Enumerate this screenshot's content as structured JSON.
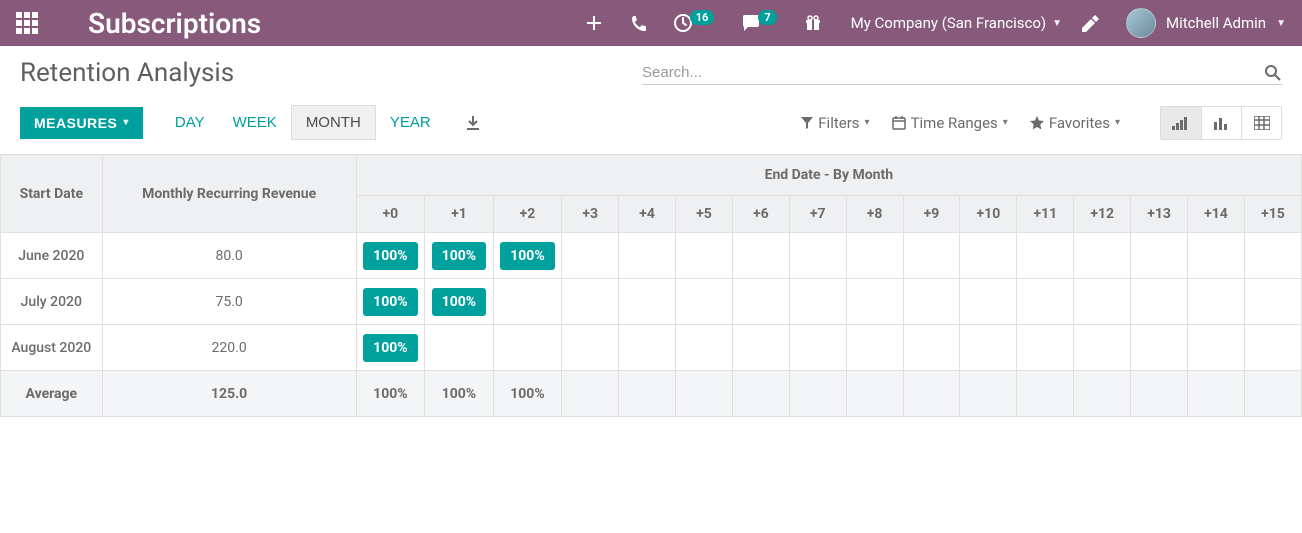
{
  "header": {
    "app_title": "Subscriptions",
    "clock_badge": "16",
    "chat_badge": "7",
    "company": "My Company (San Francisco)",
    "user_name": "Mitchell Admin"
  },
  "page": {
    "title": "Retention Analysis",
    "search_placeholder": "Search..."
  },
  "controls": {
    "measures_label": "MEASURES",
    "periods": [
      "DAY",
      "WEEK",
      "MONTH",
      "YEAR"
    ],
    "active_period": "MONTH",
    "filters_label": "Filters",
    "time_ranges_label": "Time Ranges",
    "favorites_label": "Favorites"
  },
  "table": {
    "col_start": "Start Date",
    "col_mrr": "Monthly Recurring Revenue",
    "col_group": "End Date - By Month",
    "offsets": [
      "+0",
      "+1",
      "+2",
      "+3",
      "+4",
      "+5",
      "+6",
      "+7",
      "+8",
      "+9",
      "+10",
      "+11",
      "+12",
      "+13",
      "+14",
      "+15"
    ],
    "rows": [
      {
        "start": "June 2020",
        "mrr": "80.0",
        "values": [
          "100%",
          "100%",
          "100%"
        ]
      },
      {
        "start": "July 2020",
        "mrr": "75.0",
        "values": [
          "100%",
          "100%"
        ]
      },
      {
        "start": "August 2020",
        "mrr": "220.0",
        "values": [
          "100%"
        ]
      }
    ],
    "average": {
      "label": "Average",
      "mrr": "125.0",
      "values": [
        "100%",
        "100%",
        "100%"
      ]
    }
  },
  "colors": {
    "brand_header": "#875a7b",
    "accent_teal": "#00a09d",
    "table_header_bg": "#eef0f1",
    "border": "#e0e0e0"
  }
}
